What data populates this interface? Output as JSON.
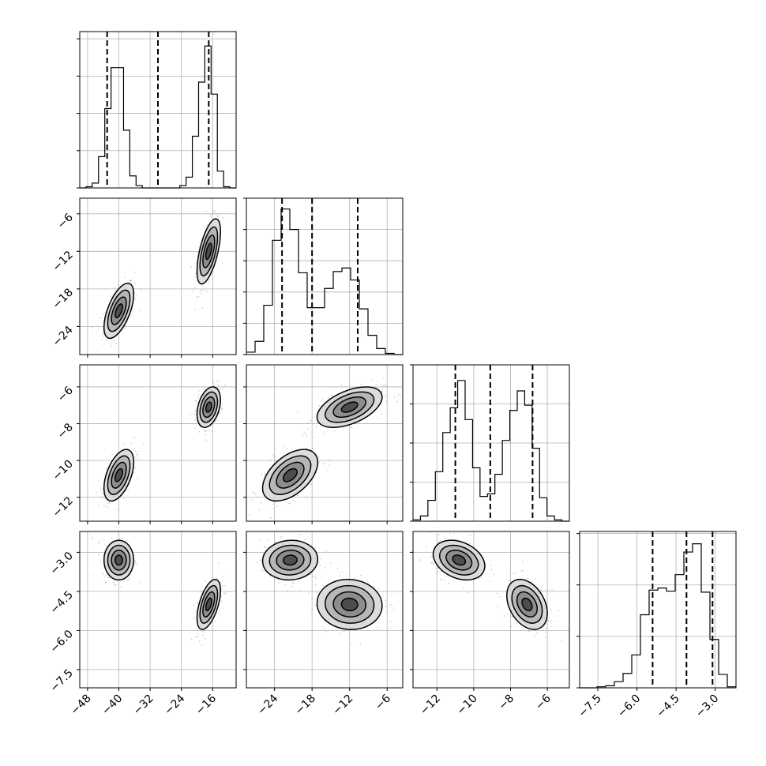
{
  "chart_data": {
    "type": "corner",
    "n_params": 4,
    "params": [
      {
        "range": [
          -50,
          -10
        ],
        "ticks": [
          {
            "v": -48,
            "label": "−48"
          },
          {
            "v": -40,
            "label": "−40"
          },
          {
            "v": -32,
            "label": "−32"
          },
          {
            "v": -24,
            "label": "−24"
          },
          {
            "v": -16,
            "label": "−16"
          }
        ],
        "quantiles": [
          -43.0,
          -30.0,
          -17.0
        ]
      },
      {
        "range": [
          -28.5,
          -3.5
        ],
        "ticks": [
          {
            "v": -24,
            "label": "−24"
          },
          {
            "v": -18,
            "label": "−18"
          },
          {
            "v": -12,
            "label": "−12"
          },
          {
            "v": -6,
            "label": "−6"
          }
        ],
        "quantiles": [
          -22.8,
          -18.0,
          -10.7
        ]
      },
      {
        "range": [
          -13.3,
          -4.8
        ],
        "ticks": [
          {
            "v": -12,
            "label": "−12"
          },
          {
            "v": -10,
            "label": "−10"
          },
          {
            "v": -8,
            "label": "−8"
          },
          {
            "v": -6,
            "label": "−6"
          }
        ],
        "quantiles": [
          -11.0,
          -9.1,
          -6.8
        ]
      },
      {
        "range": [
          -8.2,
          -2.2
        ],
        "ticks": [
          {
            "v": -7.5,
            "label": "−7.5"
          },
          {
            "v": -6.0,
            "label": "−6.0"
          },
          {
            "v": -4.5,
            "label": "−4.5"
          },
          {
            "v": -3.0,
            "label": "−3.0"
          }
        ],
        "quantiles": [
          -5.4,
          -4.1,
          -3.1
        ]
      }
    ],
    "histograms": [
      {
        "counts": [
          0,
          1,
          4,
          26,
          66,
          100,
          100,
          48,
          10,
          2,
          0,
          0,
          0,
          0,
          0,
          0,
          2,
          9,
          43,
          88,
          118,
          78,
          14,
          1,
          0
        ],
        "ylim": [
          0,
          130
        ],
        "yticks": [
          0,
          31,
          62,
          93,
          124
        ]
      },
      {
        "counts": [
          2,
          11,
          41,
          95,
          121,
          104,
          68,
          39,
          39,
          55,
          69,
          72,
          62,
          38,
          16,
          5,
          1,
          0
        ],
        "ylim": [
          0,
          130
        ],
        "yticks": [
          0,
          26,
          52,
          78,
          104,
          130
        ]
      },
      {
        "counts": [
          1,
          4,
          16,
          38,
          68,
          87,
          108,
          78,
          41,
          19,
          21,
          36,
          62,
          85,
          100,
          89,
          56,
          18,
          4,
          1,
          0
        ],
        "ylim": [
          0,
          120
        ],
        "yticks": [
          0,
          30,
          60,
          90,
          120
        ]
      },
      {
        "counts": [
          0,
          0,
          1,
          2,
          6,
          14,
          32,
          71,
          95,
          97,
          94,
          110,
          132,
          140,
          93,
          47,
          13,
          1
        ],
        "ylim": [
          0,
          152
        ],
        "yticks": [
          0,
          50,
          100,
          150
        ]
      }
    ],
    "components": [
      {
        "mean": [
          -40,
          -21.5,
          -10.8,
          -3.3
        ],
        "std": [
          1.9,
          2.2,
          0.7,
          0.38
        ],
        "weight": 0.5
      },
      {
        "mean": [
          -17,
          -12,
          -7.1,
          -5.0
        ],
        "std": [
          1.5,
          2.6,
          0.55,
          0.48
        ],
        "weight": 0.5
      }
    ],
    "pairs": [
      {
        "row": 1,
        "col": 0,
        "rho": [
          0.6,
          0.6
        ]
      },
      {
        "row": 2,
        "col": 0,
        "rho": [
          0.5,
          0.35
        ]
      },
      {
        "row": 2,
        "col": 1,
        "rho": [
          0.5,
          0.5
        ]
      },
      {
        "row": 3,
        "col": 0,
        "rho": [
          0.0,
          0.55
        ]
      },
      {
        "row": 3,
        "col": 1,
        "rho": [
          0.05,
          -0.05
        ]
      },
      {
        "row": 3,
        "col": 2,
        "rho": [
          -0.3,
          -0.35
        ]
      }
    ],
    "grid": true,
    "colors": {
      "line": "#000000",
      "grid": "#b0b0b0",
      "density": "#4d4d4d",
      "points": "#8c8c8c"
    }
  }
}
